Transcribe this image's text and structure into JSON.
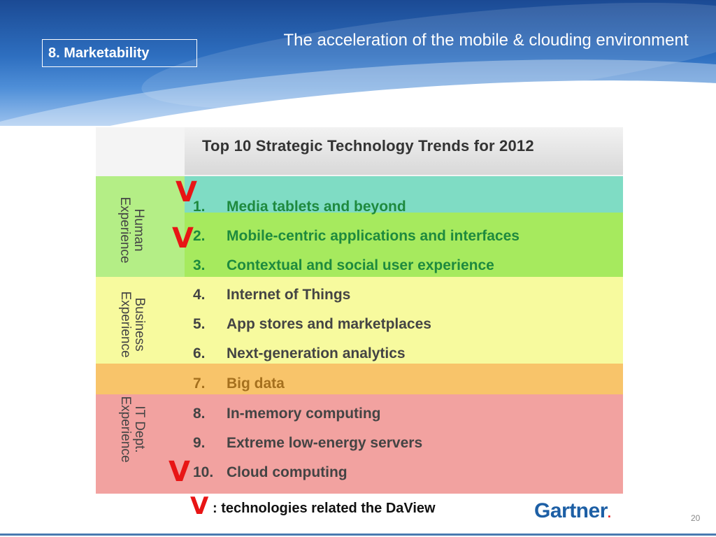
{
  "header": {
    "section_label": "8. Marketability",
    "title": "The acceleration of the mobile & clouding environment"
  },
  "figure": {
    "title": "Top 10 Strategic Technology Trends for 2012",
    "groups": [
      {
        "label": "Human\nExperience",
        "color": "#a6ea5e"
      },
      {
        "label": "Business\nExperience",
        "color": "#f7fa9e"
      },
      {
        "label": "IT Dept.\nExperience",
        "color": "#f2a2a0"
      }
    ],
    "trends": [
      {
        "num": "1.",
        "text": "Media tablets and beyond",
        "checked": true
      },
      {
        "num": "2.",
        "text": "Mobile-centric applications and interfaces",
        "checked": true
      },
      {
        "num": "3.",
        "text": "Contextual and social user experience",
        "checked": false
      },
      {
        "num": "4.",
        "text": "Internet of Things",
        "checked": false
      },
      {
        "num": "5.",
        "text": "App stores and marketplaces",
        "checked": false
      },
      {
        "num": "6.",
        "text": "Next-generation analytics",
        "checked": false
      },
      {
        "num": "7.",
        "text": "Big data",
        "checked": false
      },
      {
        "num": "8.",
        "text": "In-memory computing",
        "checked": false
      },
      {
        "num": "9.",
        "text": "Extreme low-energy servers",
        "checked": false
      },
      {
        "num": "10.",
        "text": "Cloud computing",
        "checked": true
      }
    ],
    "source": "Gartner"
  },
  "legend": {
    "mark": "V",
    "text": ": technologies  related the DaView"
  },
  "page_number": "20",
  "colors": {
    "check_mark": "#e81515",
    "header_blue": "#2e6fc0"
  }
}
